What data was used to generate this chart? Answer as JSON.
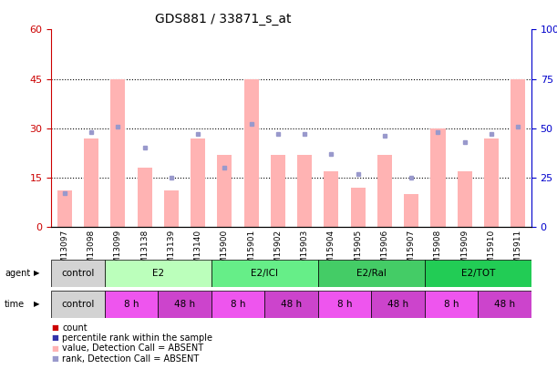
{
  "title": "GDS881 / 33871_s_at",
  "samples": [
    "GSM13097",
    "GSM13098",
    "GSM13099",
    "GSM13138",
    "GSM13139",
    "GSM13140",
    "GSM15900",
    "GSM15901",
    "GSM15902",
    "GSM15903",
    "GSM15904",
    "GSM15905",
    "GSM15906",
    "GSM15907",
    "GSM15908",
    "GSM15909",
    "GSM15910",
    "GSM15911"
  ],
  "bar_values": [
    11,
    27,
    45,
    18,
    11,
    27,
    22,
    45,
    22,
    22,
    17,
    12,
    22,
    10,
    30,
    17,
    27,
    45
  ],
  "rank_values": [
    17,
    48,
    51,
    40,
    25,
    47,
    30,
    52,
    47,
    47,
    37,
    27,
    46,
    25,
    48,
    43,
    47,
    51
  ],
  "ylim_left": [
    0,
    60
  ],
  "ylim_right": [
    0,
    100
  ],
  "yticks_left": [
    0,
    15,
    30,
    45,
    60
  ],
  "yticks_right": [
    0,
    25,
    50,
    75,
    100
  ],
  "bar_color": "#FFB3B3",
  "rank_color": "#9999CC",
  "agent_data": [
    [
      "control",
      2,
      "#D3D3D3"
    ],
    [
      "E2",
      4,
      "#BBFFBB"
    ],
    [
      "E2/ICI",
      4,
      "#66EE88"
    ],
    [
      "E2/Ral",
      4,
      "#44CC66"
    ],
    [
      "E2/TOT",
      4,
      "#22CC55"
    ]
  ],
  "time_data": [
    [
      "control",
      2,
      "#D3D3D3"
    ],
    [
      "8 h",
      2,
      "#EE55EE"
    ],
    [
      "48 h",
      2,
      "#CC44CC"
    ],
    [
      "8 h",
      2,
      "#EE55EE"
    ],
    [
      "48 h",
      2,
      "#CC44CC"
    ],
    [
      "8 h",
      2,
      "#EE55EE"
    ],
    [
      "48 h",
      2,
      "#CC44CC"
    ],
    [
      "8 h",
      2,
      "#EE55EE"
    ],
    [
      "48 h",
      2,
      "#CC44CC"
    ]
  ],
  "legend_items": [
    [
      "#CC0000",
      "count"
    ],
    [
      "#3333AA",
      "percentile rank within the sample"
    ],
    [
      "#FFB3B3",
      "value, Detection Call = ABSENT"
    ],
    [
      "#9999CC",
      "rank, Detection Call = ABSENT"
    ]
  ],
  "left_tick_color": "#CC0000",
  "right_tick_color": "#0000CC",
  "bg_color": "#FFFFFF",
  "title_fontsize": 10,
  "tick_fontsize": 8,
  "xlabel_fontsize": 6.5
}
